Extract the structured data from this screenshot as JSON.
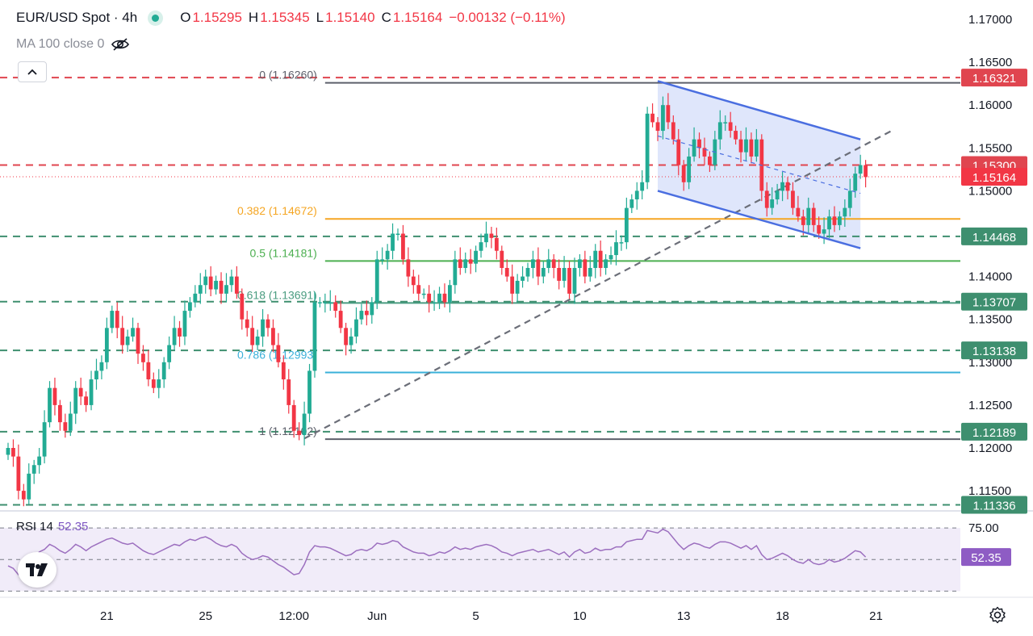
{
  "header": {
    "title": "EUR/USD Spot · 4h",
    "open_label": "O",
    "open": "1.15295",
    "high_label": "H",
    "high": "1.15345",
    "low_label": "L",
    "low": "1.15140",
    "close_label": "C",
    "close": "1.15164",
    "change": "−0.00132 (−0.11%)"
  },
  "indicator_label": "MA 100 close 0",
  "rsi": {
    "label": "RSI 14",
    "value": "52.35",
    "upper_label": "75.00",
    "current_label": "52.35"
  },
  "logo_text": "17",
  "colors": {
    "up": "#22ab94",
    "down": "#f23645",
    "channel": "#4a6ee0",
    "channel_fill": "#dbe3fb",
    "rsi": "#9c6fbf",
    "rsi_band": "#f1ecf9",
    "fib_orange": "#f5a623",
    "fib_green": "#4caf50",
    "fib_blue": "#3ab0d9",
    "level_red": "#e0454f",
    "level_green": "#3e8f6f"
  },
  "chart_data": {
    "type": "candlestick",
    "symbol": "EUR/USD Spot",
    "timeframe": "4h",
    "price_axis": {
      "ylim": [
        1.1128,
        1.1718
      ],
      "ticks": [
        "1.17000",
        "1.16500",
        "1.16000",
        "1.15500",
        "1.15000",
        "1.14500",
        "1.14000",
        "1.13500",
        "1.13000",
        "1.12500",
        "1.12000",
        "1.11500"
      ],
      "tick_values": [
        1.17,
        1.165,
        1.16,
        1.155,
        1.15,
        1.145,
        1.14,
        1.135,
        1.13,
        1.125,
        1.12,
        1.115
      ]
    },
    "x_axis": {
      "labels": [
        "21",
        "25",
        "12:00",
        "Jun",
        "5",
        "10",
        "13",
        "18",
        "21"
      ],
      "label_bars": [
        19,
        38,
        55,
        71,
        90,
        110,
        130,
        149,
        167
      ]
    },
    "levels": [
      {
        "price": 1.16321,
        "label": "1.16321",
        "color": "#e0454f"
      },
      {
        "price": 1.153,
        "label": "1.15300",
        "color": "#e0454f"
      },
      {
        "price": 1.14468,
        "label": "1.14468",
        "color": "#3e8f6f"
      },
      {
        "price": 1.13707,
        "label": "1.13707",
        "color": "#3e8f6f"
      },
      {
        "price": 1.13138,
        "label": "1.13138",
        "color": "#3e8f6f"
      },
      {
        "price": 1.12189,
        "label": "1.12189",
        "color": "#3e8f6f"
      },
      {
        "price": 1.11336,
        "label": "1.11336",
        "color": "#3e8f6f"
      }
    ],
    "current_price": {
      "price": 1.15164,
      "label": "1.15164"
    },
    "fibonacci": [
      {
        "ratio_label": "0 (1.16260)",
        "price": 1.1626,
        "color": "#5d606b"
      },
      {
        "ratio_label": "0.382 (1.14672)",
        "price": 1.14672,
        "color": "#f5a623"
      },
      {
        "ratio_label": "0.5 (1.14181)",
        "price": 1.14181,
        "color": "#4caf50"
      },
      {
        "ratio_label": "0.618 (1.13691)",
        "price": 1.13691,
        "color": "#4a9c80"
      },
      {
        "ratio_label": "0.786 (1.12993)",
        "price": 1.12993,
        "color": "#3ab0d9"
      },
      {
        "ratio_label": "1 (1.12102)",
        "price": 1.12102,
        "color": "#5d606b"
      }
    ],
    "channel": {
      "upper": [
        [
          125,
          1.1628
        ],
        [
          164,
          1.156
        ]
      ],
      "lower": [
        [
          125,
          1.15
        ],
        [
          164,
          1.1433
        ]
      ],
      "mid": [
        [
          125,
          1.1564
        ],
        [
          164,
          1.1497
        ]
      ]
    },
    "trendline": {
      "from": [
        57,
        1.1211
      ],
      "to": [
        170,
        1.157
      ]
    },
    "closes": [
      1.12,
      1.119,
      1.115,
      1.114,
      1.117,
      1.118,
      1.119,
      1.123,
      1.127,
      1.125,
      1.123,
      1.122,
      1.124,
      1.127,
      1.126,
      1.125,
      1.128,
      1.129,
      1.13,
      1.134,
      1.136,
      1.134,
      1.132,
      1.133,
      1.134,
      1.131,
      1.13,
      1.128,
      1.127,
      1.128,
      1.13,
      1.132,
      1.134,
      1.133,
      1.136,
      1.137,
      1.138,
      1.139,
      1.14,
      1.1385,
      1.1395,
      1.138,
      1.139,
      1.14,
      1.138,
      1.135,
      1.134,
      1.132,
      1.133,
      1.135,
      1.134,
      1.132,
      1.13,
      1.128,
      1.125,
      1.122,
      1.1215,
      1.124,
      1.129,
      1.137,
      1.137,
      1.137,
      1.137,
      1.136,
      1.134,
      1.132,
      1.133,
      1.135,
      1.136,
      1.1355,
      1.137,
      1.142,
      1.142,
      1.143,
      1.145,
      1.145,
      1.142,
      1.14,
      1.139,
      1.138,
      1.138,
      1.137,
      1.137,
      1.138,
      1.137,
      1.139,
      1.142,
      1.141,
      1.142,
      1.1415,
      1.143,
      1.144,
      1.145,
      1.1445,
      1.143,
      1.141,
      1.14,
      1.138,
      1.1395,
      1.14,
      1.141,
      1.142,
      1.14,
      1.141,
      1.142,
      1.141,
      1.1395,
      1.141,
      1.138,
      1.141,
      1.142,
      1.14,
      1.141,
      1.143,
      1.141,
      1.142,
      1.1425,
      1.144,
      1.144,
      1.148,
      1.149,
      1.15,
      1.151,
      1.159,
      1.158,
      1.157,
      1.16,
      1.158,
      1.156,
      1.153,
      1.151,
      1.154,
      1.156,
      1.155,
      1.154,
      1.153,
      1.156,
      1.158,
      1.158,
      1.157,
      1.156,
      1.1545,
      1.156,
      1.154,
      1.156,
      1.15,
      1.148,
      1.149,
      1.15,
      1.151,
      1.15,
      1.148,
      1.147,
      1.146,
      1.148,
      1.146,
      1.145,
      1.1455,
      1.147,
      1.146,
      1.147,
      1.148,
      1.15,
      1.152,
      1.153,
      1.1516
    ],
    "rsi_values": [
      45,
      43,
      38,
      40,
      48,
      52,
      56,
      58,
      62,
      60,
      57,
      55,
      58,
      62,
      60,
      57,
      60,
      62,
      64,
      66,
      67,
      65,
      63,
      62,
      63,
      60,
      57,
      55,
      54,
      56,
      58,
      60,
      62,
      61,
      64,
      66,
      65,
      67,
      68,
      66,
      63,
      61,
      60,
      62,
      60,
      55,
      52,
      50,
      51,
      53,
      52,
      49,
      46,
      44,
      41,
      38,
      39,
      46,
      56,
      61,
      60,
      60,
      59,
      57,
      55,
      53,
      54,
      57,
      58,
      57,
      59,
      63,
      62,
      63,
      65,
      64,
      60,
      58,
      56,
      55,
      55,
      53,
      54,
      56,
      55,
      57,
      60,
      58,
      59,
      58,
      60,
      61,
      62,
      61,
      59,
      56,
      55,
      53,
      55,
      56,
      57,
      58,
      56,
      57,
      58,
      56,
      54,
      56,
      52,
      56,
      58,
      55,
      56,
      59,
      57,
      58,
      58,
      60,
      60,
      64,
      65,
      66,
      66,
      73,
      72,
      71,
      74,
      72,
      67,
      62,
      58,
      61,
      63,
      62,
      60,
      59,
      62,
      64,
      64,
      63,
      61,
      59,
      61,
      58,
      61,
      54,
      50,
      51,
      53,
      55,
      53,
      50,
      48,
      47,
      50,
      47,
      46,
      47,
      50,
      48,
      49,
      51,
      54,
      57,
      56,
      52
    ],
    "rsi_axis": {
      "ylim": [
        24,
        84
      ],
      "upper": 75,
      "lower": 25,
      "mid": 50
    }
  }
}
